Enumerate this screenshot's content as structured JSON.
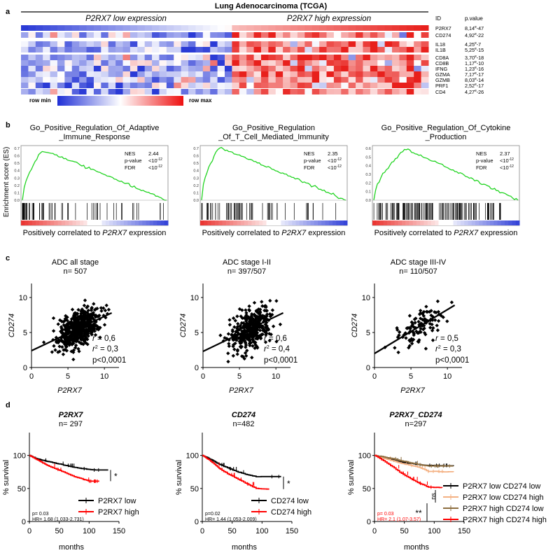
{
  "panels": {
    "a": {
      "letter": "a",
      "title": "Lung Adenocarcinoma (TCGA)",
      "group_low": "P2RX7 low expression",
      "group_high": "P2RX7 high expression",
      "col_id": "ID",
      "col_pvalue": "p.value",
      "genes": [
        {
          "id": "P2RX7",
          "pvalue": "8,14e-47"
        },
        {
          "id": "CD274",
          "pvalue": "4,92e-22"
        },
        {
          "id": "IL18",
          "pvalue": "4,25e-7"
        },
        {
          "id": "IL1B",
          "pvalue": "5,25e-15"
        },
        {
          "id": "CD8A",
          "pvalue": "3,70e-18"
        },
        {
          "id": "CD8B",
          "pvalue": "1,17e-10"
        },
        {
          "id": "IFNG",
          "pvalue": "1,23e-16"
        },
        {
          "id": "GZMA",
          "pvalue": "7,17e-17"
        },
        {
          "id": "GZMB",
          "pvalue": "8,03e-14"
        },
        {
          "id": "PRF1",
          "pvalue": "2,52e-17"
        },
        {
          "id": "CD4",
          "pvalue": "4,27e-26"
        }
      ],
      "legend_min": "row min",
      "legend_max": "row max",
      "colors": {
        "low": "#2b3bd6",
        "mid": "#ffffff",
        "high": "#e8201c"
      }
    },
    "b": {
      "letter": "b",
      "ylabel": "Enrichment score (ES)",
      "xlabel_prefix": "Positively correlated to ",
      "xlabel_gene": "P2RX7",
      "xlabel_suffix": " expression",
      "curve_color": "#22d422"
    },
    "c": {
      "letter": "c"
    },
    "d": {
      "letter": "d"
    }
  },
  "chart_data": [
    {
      "type": "line",
      "panel": "b1",
      "title_lines": [
        "Go_Positive_Regulation_Of_Adaptive",
        "_Immune_Response"
      ],
      "ylim": [
        0,
        0.7
      ],
      "yticks": [
        "0.7",
        "0.6",
        "0.5",
        "0.4",
        "0.3",
        "0.2",
        "0.1",
        "0.0"
      ],
      "peak": {
        "x": 0.14,
        "es": 0.67
      },
      "stats": [
        {
          "label": "NES",
          "value": "2.44"
        },
        {
          "label": "p-value",
          "value": "<10",
          "exp": "-12"
        },
        {
          "label": "FDR",
          "value": "<10",
          "exp": "-12"
        }
      ]
    },
    {
      "type": "line",
      "panel": "b2",
      "title_lines": [
        "Go_Positive_Regulation",
        "_Of_T_Cell_Mediated_Immunity"
      ],
      "ylim": [
        0,
        0.7
      ],
      "yticks": [
        "0.7",
        "0.6",
        "0.5",
        "0.4",
        "0.3",
        "0.2",
        "0.1",
        "0.0"
      ],
      "peak": {
        "x": 0.12,
        "es": 0.71
      },
      "stats": [
        {
          "label": "NES",
          "value": "2.35"
        },
        {
          "label": "p-value",
          "value": "<10",
          "exp": "-12"
        },
        {
          "label": "FDR",
          "value": "<10",
          "exp": "-12"
        }
      ]
    },
    {
      "type": "line",
      "panel": "b3",
      "title_lines": [
        "Go_Positive_Regulation_Of_Cytokine",
        "_Production"
      ],
      "ylim": [
        0,
        0.6
      ],
      "yticks": [
        "0.6",
        "0.5",
        "0.4",
        "0.3",
        "0.2",
        "0.1",
        "0.0"
      ],
      "peak": {
        "x": 0.22,
        "es": 0.59
      },
      "stats": [
        {
          "label": "NES",
          "value": "2.37"
        },
        {
          "label": "p-value",
          "value": "<10",
          "exp": "-12"
        },
        {
          "label": "FDR",
          "value": "<10",
          "exp": "-12"
        }
      ]
    },
    {
      "type": "scatter",
      "panel": "c1",
      "title": "ADC all stage",
      "n": "n= 507",
      "xlabel": "P2RX7",
      "ylabel": "CD274",
      "xlim": [
        0,
        12
      ],
      "ylim": [
        0,
        12
      ],
      "xticks": [
        0,
        5,
        10
      ],
      "yticks": [
        0,
        5,
        10
      ],
      "fit": {
        "x0": 0,
        "y0": 2.4,
        "x1": 11,
        "y1": 7.8
      },
      "r": "= 0,6",
      "r2": "= 0,3",
      "p": "p<0,0001",
      "points_summary": {
        "n": 507,
        "x_mean": 6.6,
        "x_sd": 1.4,
        "y_mean": 5.6,
        "y_sd": 1.8
      }
    },
    {
      "type": "scatter",
      "panel": "c2",
      "title": "ADC stage I-II",
      "n": "n= 397/507",
      "xlabel": "P2RX7",
      "ylabel": "CD274",
      "xlim": [
        0,
        12
      ],
      "ylim": [
        0,
        12
      ],
      "xticks": [
        0,
        5,
        10
      ],
      "yticks": [
        0,
        5,
        10
      ],
      "fit": {
        "x0": 0,
        "y0": 2.3,
        "x1": 11,
        "y1": 7.8
      },
      "r": "= 0,6",
      "r2": "= 0,4",
      "p": "p<0,0001",
      "points_summary": {
        "n": 397,
        "x_mean": 6.6,
        "x_sd": 1.4,
        "y_mean": 5.5,
        "y_sd": 1.8
      }
    },
    {
      "type": "scatter",
      "panel": "c3",
      "title": "ADC stage III-IV",
      "n": "n= 110/507",
      "xlabel": "P2RX7",
      "ylabel": "CD274",
      "xlim": [
        0,
        12
      ],
      "ylim": [
        0,
        12
      ],
      "xticks": [
        0,
        5,
        10
      ],
      "yticks": [
        0,
        5,
        10
      ],
      "fit": {
        "x0": 0,
        "y0": 2.0,
        "x1": 11,
        "y1": 8.9
      },
      "r": "= 0,5",
      "r2": "= 0,3",
      "p": "p<0,0001",
      "points_summary": {
        "n": 110,
        "x_mean": 6.3,
        "x_sd": 1.5,
        "y_mean": 5.9,
        "y_sd": 1.8
      }
    },
    {
      "type": "line",
      "panel": "d1",
      "title": "P2RX7",
      "n": "n= 297",
      "xlabel": "months",
      "ylabel": "% survival",
      "xlim": [
        0,
        150
      ],
      "ylim": [
        0,
        100
      ],
      "xticks": [
        0,
        50,
        100,
        150
      ],
      "yticks": [
        0,
        50,
        100
      ],
      "series": [
        {
          "name": "P2RX7 low",
          "color": "#000000",
          "points": [
            [
              0,
              100
            ],
            [
              10,
              96
            ],
            [
              20,
              93
            ],
            [
              30,
              91
            ],
            [
              45,
              88
            ],
            [
              60,
              85
            ],
            [
              75,
              82
            ],
            [
              90,
              80
            ],
            [
              105,
              78
            ],
            [
              132,
              78
            ]
          ]
        },
        {
          "name": "P2RX7 high",
          "color": "#ff0000",
          "points": [
            [
              0,
              100
            ],
            [
              10,
              95
            ],
            [
              20,
              90
            ],
            [
              30,
              85
            ],
            [
              45,
              79
            ],
            [
              60,
              74
            ],
            [
              75,
              68
            ],
            [
              90,
              64
            ],
            [
              100,
              61
            ],
            [
              117,
              61
            ]
          ]
        }
      ],
      "significance": "*",
      "stat_lines": [
        "p= 0.03",
        "HR= 1.68 (1.033-2.731)"
      ],
      "stat_color": "#000000"
    },
    {
      "type": "line",
      "panel": "d2",
      "title": "CD274",
      "n": "n=482",
      "xlabel": "months",
      "ylabel": "% survival",
      "xlim": [
        0,
        150
      ],
      "ylim": [
        0,
        100
      ],
      "xticks": [
        0,
        50,
        100,
        150
      ],
      "yticks": [
        0,
        50,
        100
      ],
      "series": [
        {
          "name": "CD274 low",
          "color": "#000000",
          "points": [
            [
              0,
              100
            ],
            [
              10,
              96
            ],
            [
              20,
              91
            ],
            [
              30,
              86
            ],
            [
              45,
              80
            ],
            [
              60,
              75
            ],
            [
              75,
              71
            ],
            [
              90,
              68
            ],
            [
              132,
              68
            ]
          ]
        },
        {
          "name": "CD274 high",
          "color": "#ff0000",
          "points": [
            [
              0,
              100
            ],
            [
              10,
              94
            ],
            [
              20,
              87
            ],
            [
              30,
              79
            ],
            [
              45,
              71
            ],
            [
              60,
              64
            ],
            [
              75,
              57
            ],
            [
              90,
              50
            ],
            [
              112,
              49
            ]
          ]
        }
      ],
      "significance": "*",
      "stat_lines": [
        "p=0.02",
        "HR= 1.44 (1.053-2.009)"
      ],
      "stat_color": "#000000"
    },
    {
      "type": "line",
      "panel": "d3",
      "title": "P2RX7_CD274",
      "n": "n=297",
      "xlabel": "months",
      "ylabel": "% survival",
      "xlim": [
        0,
        150
      ],
      "ylim": [
        0,
        100
      ],
      "xticks": [
        0,
        50,
        100,
        150
      ],
      "yticks": [
        0,
        50,
        100
      ],
      "series": [
        {
          "name": "P2RX7 low CD274 low",
          "color": "#000000",
          "points": [
            [
              0,
              100
            ],
            [
              15,
              96
            ],
            [
              30,
              93
            ],
            [
              45,
              90
            ],
            [
              60,
              88
            ],
            [
              75,
              86
            ],
            [
              90,
              85
            ],
            [
              132,
              84
            ]
          ]
        },
        {
          "name": "P2RX7 low CD274 high",
          "color": "#f4b183",
          "points": [
            [
              0,
              100
            ],
            [
              15,
              96
            ],
            [
              30,
              92
            ],
            [
              45,
              88
            ],
            [
              60,
              85
            ],
            [
              75,
              82
            ],
            [
              90,
              76
            ],
            [
              132,
              75
            ]
          ]
        },
        {
          "name": "P2RX7 high CD274 low",
          "color": "#8c6d3f",
          "points": [
            [
              0,
              100
            ],
            [
              15,
              98
            ],
            [
              30,
              95
            ],
            [
              45,
              92
            ],
            [
              60,
              89
            ],
            [
              75,
              86
            ],
            [
              90,
              84
            ],
            [
              132,
              84
            ]
          ]
        },
        {
          "name": "P2RX7 high CD274 high",
          "color": "#ff0000",
          "points": [
            [
              0,
              100
            ],
            [
              15,
              92
            ],
            [
              30,
              83
            ],
            [
              45,
              73
            ],
            [
              60,
              65
            ],
            [
              75,
              58
            ],
            [
              90,
              52
            ],
            [
              113,
              51
            ]
          ]
        }
      ],
      "sig_ns": "ns",
      "sig_double": "**",
      "stat_lines": [
        "p= 0.03",
        "HR= 2.1 (1.07-3.57)"
      ],
      "stat_color": "#ff0000"
    }
  ]
}
